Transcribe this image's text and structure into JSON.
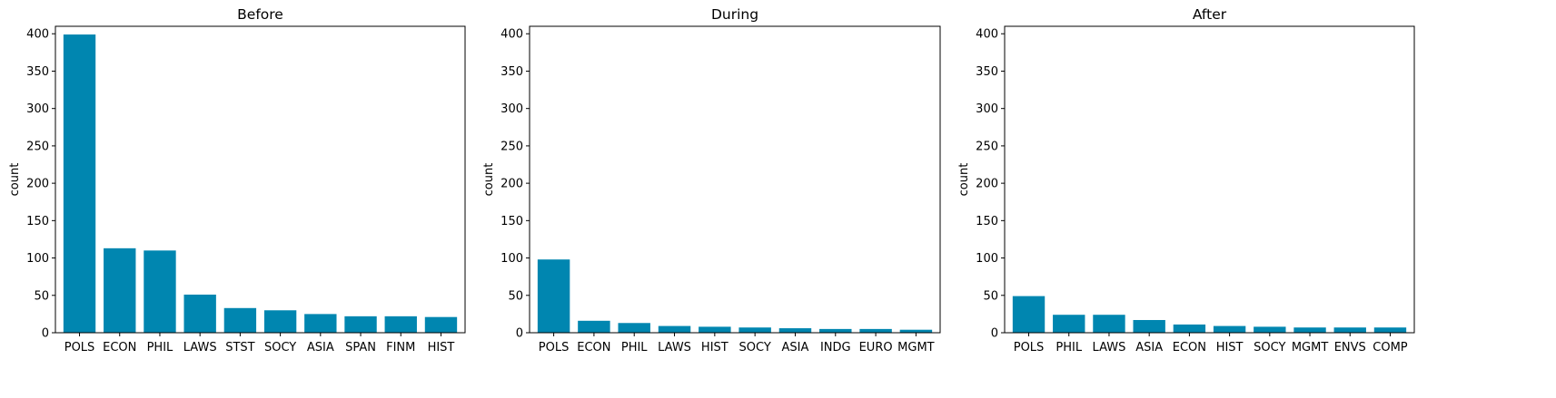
{
  "chart_data": [
    {
      "type": "bar",
      "title": "Before",
      "xlabel": "",
      "ylabel": "count",
      "ylim": [
        0,
        410
      ],
      "yticks": [
        0,
        50,
        100,
        150,
        200,
        250,
        300,
        350,
        400
      ],
      "categories": [
        "POLS",
        "ECON",
        "PHIL",
        "LAWS",
        "STST",
        "SOCY",
        "ASIA",
        "SPAN",
        "FINM",
        "HIST"
      ],
      "values": [
        399,
        113,
        110,
        51,
        33,
        30,
        25,
        22,
        22,
        21
      ],
      "color": "#0086b0"
    },
    {
      "type": "bar",
      "title": "During",
      "xlabel": "",
      "ylabel": "count",
      "ylim": [
        0,
        410
      ],
      "yticks": [
        0,
        50,
        100,
        150,
        200,
        250,
        300,
        350,
        400
      ],
      "categories": [
        "POLS",
        "ECON",
        "PHIL",
        "LAWS",
        "HIST",
        "SOCY",
        "ASIA",
        "INDG",
        "EURO",
        "MGMT"
      ],
      "values": [
        98,
        16,
        13,
        9,
        8,
        7,
        6,
        5,
        5,
        4
      ],
      "color": "#0086b0"
    },
    {
      "type": "bar",
      "title": "After",
      "xlabel": "",
      "ylabel": "count",
      "ylim": [
        0,
        410
      ],
      "yticks": [
        0,
        50,
        100,
        150,
        200,
        250,
        300,
        350,
        400
      ],
      "categories": [
        "POLS",
        "PHIL",
        "LAWS",
        "ASIA",
        "ECON",
        "HIST",
        "SOCY",
        "MGMT",
        "ENVS",
        "COMP"
      ],
      "values": [
        49,
        24,
        24,
        17,
        11,
        9,
        8,
        7,
        7,
        7
      ],
      "color": "#0086b0"
    }
  ]
}
